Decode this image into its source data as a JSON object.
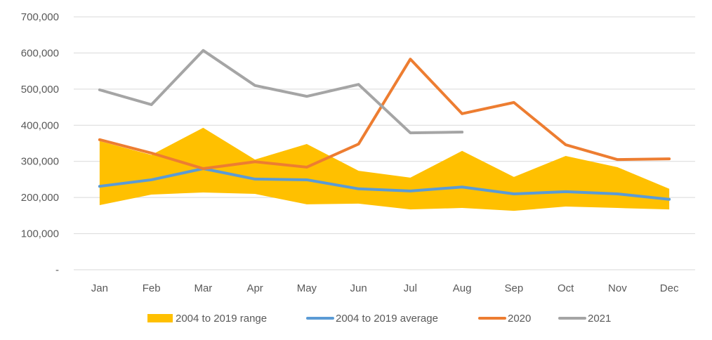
{
  "chart_data": {
    "type": "line",
    "title": "",
    "xlabel": "",
    "ylabel": "",
    "categories": [
      "Jan",
      "Feb",
      "Mar",
      "Apr",
      "May",
      "Jun",
      "Jul",
      "Aug",
      "Sep",
      "Oct",
      "Nov",
      "Dec"
    ],
    "ylim": [
      0,
      700000
    ],
    "yticks": [
      0,
      100000,
      200000,
      300000,
      400000,
      500000,
      600000,
      700000
    ],
    "ytick_labels": [
      "-",
      "100,000",
      "200,000",
      "300,000",
      "400,000",
      "500,000",
      "600,000",
      "700,000"
    ],
    "grid": true,
    "legend_position": "bottom",
    "range": {
      "name": "2004 to 2019 range",
      "color": "#FFC000",
      "low": [
        179000,
        208000,
        214000,
        210000,
        181000,
        183000,
        167000,
        171000,
        163000,
        175000,
        171000,
        167000
      ],
      "high": [
        356000,
        318000,
        393000,
        305000,
        348000,
        274000,
        255000,
        329000,
        257000,
        315000,
        284000,
        224000
      ]
    },
    "series": [
      {
        "name": "2004 to 2019 average",
        "color": "#5B9BD5",
        "values": [
          231000,
          249000,
          280000,
          251000,
          249000,
          224000,
          218000,
          229000,
          210000,
          216000,
          210000,
          195000
        ]
      },
      {
        "name": "2020",
        "color": "#ED7D31",
        "values": [
          360000,
          323000,
          280000,
          299000,
          284000,
          348000,
          583000,
          432000,
          463000,
          346000,
          305000,
          307000
        ]
      },
      {
        "name": "2021",
        "color": "#A5A5A5",
        "values": [
          498000,
          457000,
          607000,
          510000,
          480000,
          513000,
          379000,
          381000,
          null,
          null,
          null,
          null
        ]
      }
    ],
    "legend": [
      {
        "label": "2004 to 2019 range",
        "kind": "area",
        "color": "#FFC000"
      },
      {
        "label": "2004 to 2019 average",
        "kind": "line",
        "color": "#5B9BD5"
      },
      {
        "label": "2020",
        "kind": "line",
        "color": "#ED7D31"
      },
      {
        "label": "2021",
        "kind": "line",
        "color": "#A5A5A5"
      }
    ]
  }
}
